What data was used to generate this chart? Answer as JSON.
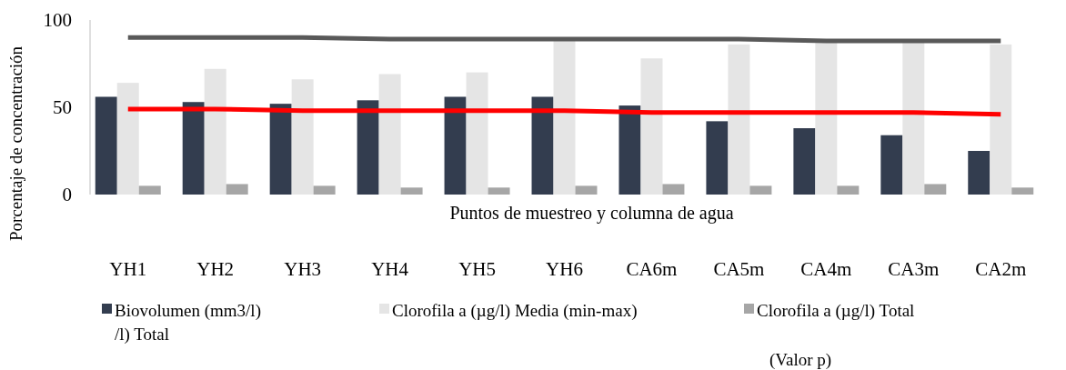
{
  "chart_data": {
    "type": "bar",
    "xlabel": "Puntos de muestreo y columna de agua",
    "ylabel": "Porcentaje de concentración",
    "categories": [
      "YH1",
      "YH2",
      "YH3",
      "YH4",
      "YH5",
      "YH6",
      "CA6m",
      "CA5m",
      "CA4m",
      "CA3m",
      "CA2m"
    ],
    "series": [
      {
        "name": "Biovolumen (mm3/l)",
        "color": "#333d4f",
        "values": [
          56,
          53,
          52,
          54,
          56,
          56,
          51,
          42,
          38,
          34,
          25
        ]
      },
      {
        "name": "Clorofila a (µg/l) Media (min-max)",
        "color": "#e5e5e5",
        "values": [
          64,
          72,
          66,
          69,
          70,
          88,
          78,
          86,
          88,
          87,
          86
        ]
      },
      {
        "name": "Clorofila a (µg/l) Total",
        "color": "#a6a6a6",
        "values": [
          5,
          6,
          5,
          4,
          4,
          5,
          6,
          5,
          5,
          6,
          4
        ]
      },
      {
        "type": "line",
        "color": "#595959",
        "values": [
          90,
          90,
          90,
          89,
          89,
          89,
          89,
          89,
          88,
          88,
          88
        ]
      },
      {
        "type": "line",
        "color": "#ff0000",
        "values": [
          49,
          49,
          48,
          48,
          48,
          48,
          47,
          47,
          47,
          47,
          46
        ]
      }
    ],
    "ylim": [
      0,
      100
    ],
    "yticks": [
      0,
      50,
      100
    ],
    "grid": false,
    "legend": "bottom",
    "annotations": [
      "/l) Total",
      "(Valor p)"
    ]
  }
}
